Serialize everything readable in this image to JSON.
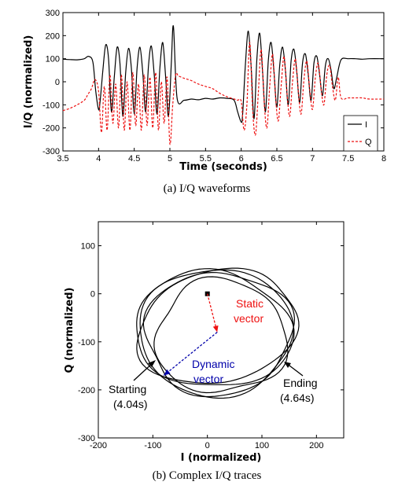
{
  "chart_data": [
    {
      "type": "line",
      "caption": "(a) I/Q waveforms",
      "xlabel": "Time (seconds)",
      "ylabel": "I/Q (normalized)",
      "xlim": [
        3.5,
        8
      ],
      "ylim": [
        -300,
        300
      ],
      "xticks": [
        3.5,
        4,
        4.5,
        5,
        5.5,
        6,
        6.5,
        7,
        7.5,
        8
      ],
      "yticks": [
        -300,
        -200,
        -100,
        0,
        100,
        200,
        300
      ],
      "legend_position": "right",
      "series": [
        {
          "name": "I",
          "color": "#000000",
          "style": "solid",
          "x": [
            3.5,
            3.6,
            3.7,
            3.8,
            3.86,
            3.92,
            3.96,
            4.0,
            4.02,
            4.06,
            4.1,
            4.14,
            4.18,
            4.22,
            4.26,
            4.3,
            4.34,
            4.38,
            4.42,
            4.46,
            4.5,
            4.54,
            4.58,
            4.62,
            4.66,
            4.7,
            4.74,
            4.78,
            4.82,
            4.86,
            4.9,
            4.94,
            4.98,
            5.02,
            5.05,
            5.1,
            5.2,
            5.3,
            5.4,
            5.5,
            5.6,
            5.7,
            5.8,
            5.9,
            5.95,
            6.0,
            6.02,
            6.06,
            6.1,
            6.14,
            6.18,
            6.22,
            6.26,
            6.3,
            6.34,
            6.38,
            6.42,
            6.46,
            6.5,
            6.54,
            6.58,
            6.62,
            6.66,
            6.7,
            6.74,
            6.78,
            6.82,
            6.86,
            6.9,
            6.94,
            6.98,
            7.02,
            7.06,
            7.1,
            7.14,
            7.18,
            7.22,
            7.26,
            7.3,
            7.34,
            7.4,
            7.5,
            7.6,
            7.7,
            7.8,
            8.0
          ],
          "y": [
            98,
            96,
            95,
            100,
            110,
            85,
            -40,
            -120,
            -90,
            50,
            160,
            100,
            -130,
            20,
            150,
            80,
            -150,
            40,
            145,
            60,
            -140,
            60,
            150,
            40,
            -130,
            70,
            155,
            30,
            -140,
            60,
            170,
            20,
            -150,
            80,
            240,
            -70,
            -80,
            -75,
            -78,
            -72,
            -75,
            -70,
            -72,
            -80,
            -130,
            -175,
            -140,
            80,
            220,
            60,
            -160,
            100,
            210,
            40,
            -130,
            90,
            170,
            40,
            -110,
            70,
            150,
            50,
            -100,
            90,
            140,
            40,
            -90,
            80,
            120,
            30,
            -80,
            80,
            110,
            30,
            -60,
            70,
            100,
            50,
            -30,
            20,
            95,
            100,
            100,
            98,
            100,
            100
          ]
        },
        {
          "name": "Q",
          "color": "#ee1111",
          "style": "dashed",
          "x": [
            3.5,
            3.6,
            3.7,
            3.8,
            3.85,
            3.9,
            3.95,
            4.0,
            4.04,
            4.08,
            4.12,
            4.16,
            4.2,
            4.24,
            4.28,
            4.32,
            4.36,
            4.4,
            4.44,
            4.48,
            4.52,
            4.56,
            4.6,
            4.64,
            4.68,
            4.72,
            4.76,
            4.8,
            4.84,
            4.88,
            4.92,
            4.96,
            5.0,
            5.04,
            5.08,
            5.12,
            5.2,
            5.3,
            5.4,
            5.5,
            5.6,
            5.7,
            5.8,
            5.9,
            5.95,
            6.0,
            6.04,
            6.08,
            6.12,
            6.16,
            6.2,
            6.24,
            6.28,
            6.32,
            6.36,
            6.4,
            6.44,
            6.48,
            6.52,
            6.56,
            6.6,
            6.64,
            6.68,
            6.72,
            6.76,
            6.8,
            6.84,
            6.88,
            6.92,
            6.96,
            7.0,
            7.04,
            7.08,
            7.12,
            7.16,
            7.2,
            7.24,
            7.28,
            7.32,
            7.36,
            7.4,
            7.5,
            7.6,
            7.7,
            7.8,
            8.0
          ],
          "y": [
            -125,
            -115,
            -100,
            -80,
            -55,
            -30,
            10,
            -40,
            -220,
            -20,
            -210,
            30,
            -180,
            -10,
            -200,
            30,
            -210,
            0,
            -210,
            40,
            -190,
            -10,
            -210,
            30,
            -190,
            20,
            -200,
            40,
            -210,
            0,
            -180,
            20,
            -270,
            -100,
            30,
            25,
            15,
            5,
            -10,
            -20,
            -30,
            -50,
            -65,
            -75,
            -80,
            -85,
            -210,
            -100,
            170,
            -120,
            -230,
            -50,
            140,
            -80,
            -200,
            -20,
            120,
            -60,
            -170,
            -20,
            110,
            -40,
            -150,
            0,
            100,
            -40,
            -140,
            10,
            90,
            -30,
            -120,
            20,
            80,
            -30,
            -100,
            30,
            70,
            -20,
            -80,
            20,
            -70,
            -70,
            -70,
            -70,
            -75,
            -75
          ]
        }
      ]
    },
    {
      "type": "line",
      "caption": "(b) Complex I/Q traces",
      "xlabel": "I (normalized)",
      "ylabel": "Q (normalized)",
      "xlim": [
        -200,
        250
      ],
      "ylim": [
        -300,
        150
      ],
      "xticks": [
        -200,
        -100,
        0,
        100,
        200
      ],
      "yticks": [
        -300,
        -200,
        -100,
        0,
        100
      ],
      "annotations": [
        {
          "text_lines": [
            "Static",
            "vector"
          ],
          "color": "#ee1111",
          "from": [
            0,
            0
          ],
          "to": [
            18,
            -80
          ]
        },
        {
          "text_lines": [
            "Dynamic",
            "vector"
          ],
          "color": "#0000aa",
          "from": [
            18,
            -80
          ],
          "to": [
            -80,
            -170
          ]
        },
        {
          "text_lines": [
            "Starting",
            "(4.04s)"
          ],
          "color": "#000000",
          "arrow_to": [
            -105,
            -135
          ]
        },
        {
          "text_lines": [
            "Ending",
            "(4.64s)"
          ],
          "color": "#000000",
          "arrow_to": [
            145,
            -135
          ]
        }
      ],
      "marker": {
        "x": 0,
        "y": 0,
        "shape": "square",
        "color": "#000000"
      },
      "loops": [
        {
          "cx": 15,
          "cy": -80,
          "rx": 140,
          "ry": 133,
          "rot": 0,
          "w": 0.03
        },
        {
          "cx": 20,
          "cy": -82,
          "rx": 135,
          "ry": 128,
          "rot": 12,
          "w": 0.05
        },
        {
          "cx": 10,
          "cy": -75,
          "rx": 145,
          "ry": 120,
          "rot": -10,
          "w": 0.04
        },
        {
          "cx": 25,
          "cy": -90,
          "rx": 120,
          "ry": 118,
          "rot": 5,
          "w": 0.06
        },
        {
          "cx": 18,
          "cy": -70,
          "rx": 150,
          "ry": 115,
          "rot": 20,
          "w": 0.035
        }
      ]
    }
  ]
}
